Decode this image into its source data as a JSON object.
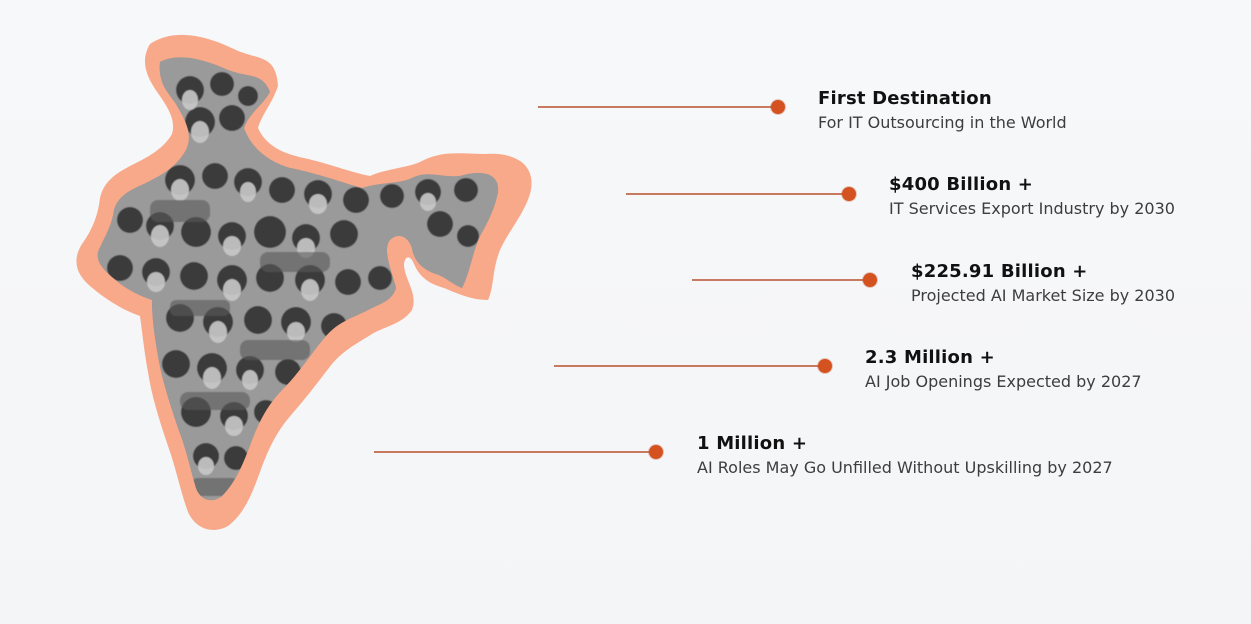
{
  "stats": [
    {
      "title": "First Destination",
      "description": "For IT Outsourcing in the World"
    },
    {
      "title": "$400 Billion +",
      "description": "IT Services Export Industry by 2030"
    },
    {
      "title": "$225.91 Billion +",
      "description": "Projected AI Market Size by 2030"
    },
    {
      "title": "2.3 Million +",
      "description": "AI Job Openings Expected by 2027"
    },
    {
      "title": "1 Million +",
      "description": "AI Roles May Go Unfilled Without Upskilling by 2027"
    }
  ],
  "colors": {
    "accent": "#d4521f",
    "connector": "#c77a5f",
    "map_outline": "#f7a98a",
    "title": "#111111",
    "description": "#3d3d3d"
  },
  "icons": {
    "map": "india-map-crowd-illustration",
    "marker": "orange-dot-marker"
  }
}
